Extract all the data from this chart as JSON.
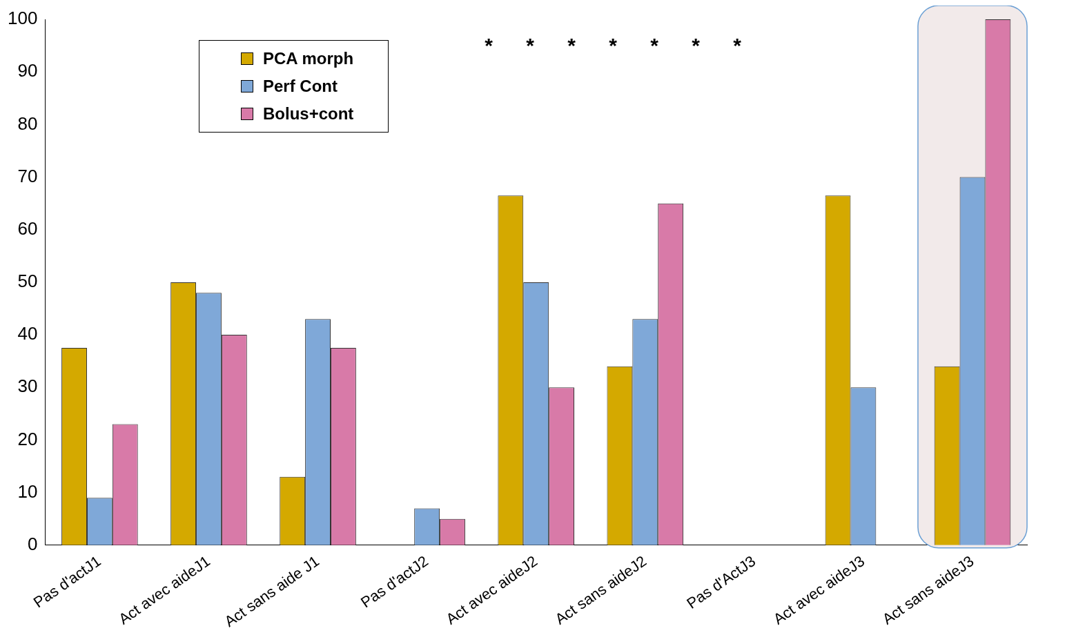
{
  "chart_data": {
    "type": "bar",
    "categories": [
      "Pas d'actJ1",
      "Act avec aideJ1",
      "Act sans aide J1",
      "Pas d'actJ2",
      "Act avec aideJ2",
      "Act sans aideJ2",
      "Pas d'ActJ3",
      "Act avec aideJ3",
      "Act sans aideJ3"
    ],
    "series": [
      {
        "name": "PCA morph",
        "color": "#d4a900",
        "values": [
          37.5,
          50,
          13,
          0,
          66.5,
          34,
          0,
          66.5,
          34
        ]
      },
      {
        "name": "Perf Cont",
        "color": "#7fa8d8",
        "values": [
          9,
          48,
          43,
          7,
          50,
          43,
          0,
          30,
          70
        ]
      },
      {
        "name": "Bolus+cont",
        "color": "#d87aa8",
        "values": [
          23,
          40,
          37.5,
          5,
          30,
          65,
          0,
          0,
          100
        ]
      }
    ],
    "ylim": [
      0,
      100
    ],
    "yticks": [
      0,
      10,
      20,
      30,
      40,
      50,
      60,
      70,
      80,
      90,
      100
    ],
    "grid": false,
    "legend": "top left",
    "bands": [
      {
        "axis": "x",
        "from": "Act sans aideJ3",
        "to": "Act sans aideJ3",
        "color": "#f2eaea"
      }
    ],
    "annotations": [
      "*",
      "*",
      "*",
      "*",
      "*",
      "*",
      "*"
    ]
  }
}
